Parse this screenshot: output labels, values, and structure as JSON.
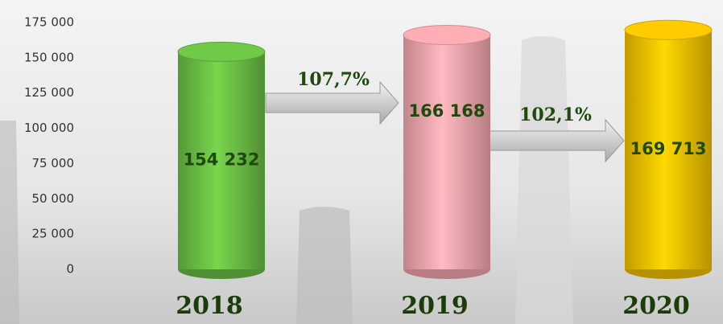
{
  "chart_data": {
    "type": "bar",
    "categories": [
      "2018",
      "2019",
      "2020"
    ],
    "values": [
      154232,
      166168,
      169713
    ],
    "value_labels": [
      "154 232",
      "166 168",
      "169 713"
    ],
    "colors": [
      "#6cbf45",
      "#f4a6ad",
      "#f2c200"
    ],
    "ylim": [
      0,
      175000
    ],
    "yticks": [
      0,
      {
        "value": 25000,
        "label": "25 000"
      },
      {
        "value": 50000,
        "label": "50 000"
      },
      {
        "value": 75000,
        "label": "75 000"
      },
      {
        "value": 100000,
        "label": "100 000"
      },
      {
        "value": 125000,
        "label": "125 000"
      },
      {
        "value": 150000,
        "label": "150 000"
      },
      {
        "value": 175000,
        "label": "175 000"
      }
    ],
    "annotations": [
      {
        "text": "107,7%"
      },
      {
        "text": "102,1%"
      }
    ]
  }
}
